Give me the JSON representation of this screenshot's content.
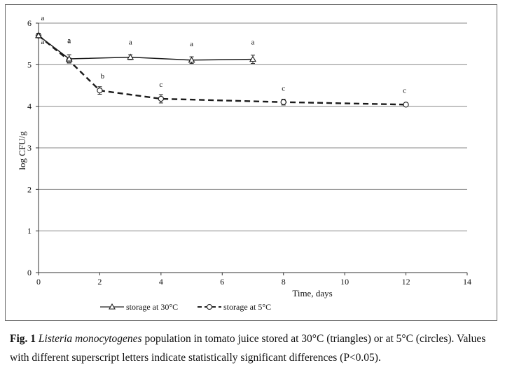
{
  "chart_data": {
    "type": "line",
    "xlabel": "Time, days",
    "ylabel": "log CFU/g",
    "xlim": [
      0,
      14
    ],
    "ylim": [
      0,
      6
    ],
    "x_ticks": [
      "0",
      "2",
      "4",
      "6",
      "8",
      "10",
      "12",
      "14"
    ],
    "y_ticks": [
      "0",
      "1",
      "2",
      "3",
      "4",
      "5",
      "6"
    ],
    "grid": "horizontal",
    "legend_position": "bottom",
    "series": [
      {
        "name": "storage at 30°C",
        "marker": "triangle",
        "line": "solid",
        "points": [
          {
            "x": 0,
            "y": 5.7,
            "err": 0.05,
            "label": "a"
          },
          {
            "x": 1,
            "y": 5.14,
            "err": 0.1,
            "label": "a"
          },
          {
            "x": 3,
            "y": 5.18,
            "err": 0.06,
            "label": "a"
          },
          {
            "x": 5,
            "y": 5.11,
            "err": 0.08,
            "label": "a"
          },
          {
            "x": 7,
            "y": 5.13,
            "err": 0.1,
            "label": "a"
          }
        ]
      },
      {
        "name": "storage at 5°C",
        "marker": "circle",
        "line": "dashed",
        "points": [
          {
            "x": 0,
            "y": 5.7,
            "err": 0.05,
            "label": "a"
          },
          {
            "x": 1,
            "y": 5.1,
            "err": 0.06,
            "label": "a"
          },
          {
            "x": 2,
            "y": 4.38,
            "err": 0.09,
            "label": "b"
          },
          {
            "x": 4,
            "y": 4.18,
            "err": 0.1,
            "label": "c"
          },
          {
            "x": 8,
            "y": 4.1,
            "err": 0.07,
            "label": "c"
          },
          {
            "x": 12,
            "y": 4.04,
            "err": 0.03,
            "label": "c"
          }
        ]
      }
    ]
  },
  "caption": {
    "label": "Fig. 1",
    "species": "Listeria monocytogenes",
    "text": " population in tomato juice stored at 30°C (triangles) or at 5°C (circles). Values with different superscript letters indicate statistically significant differences (P<0.05)."
  }
}
